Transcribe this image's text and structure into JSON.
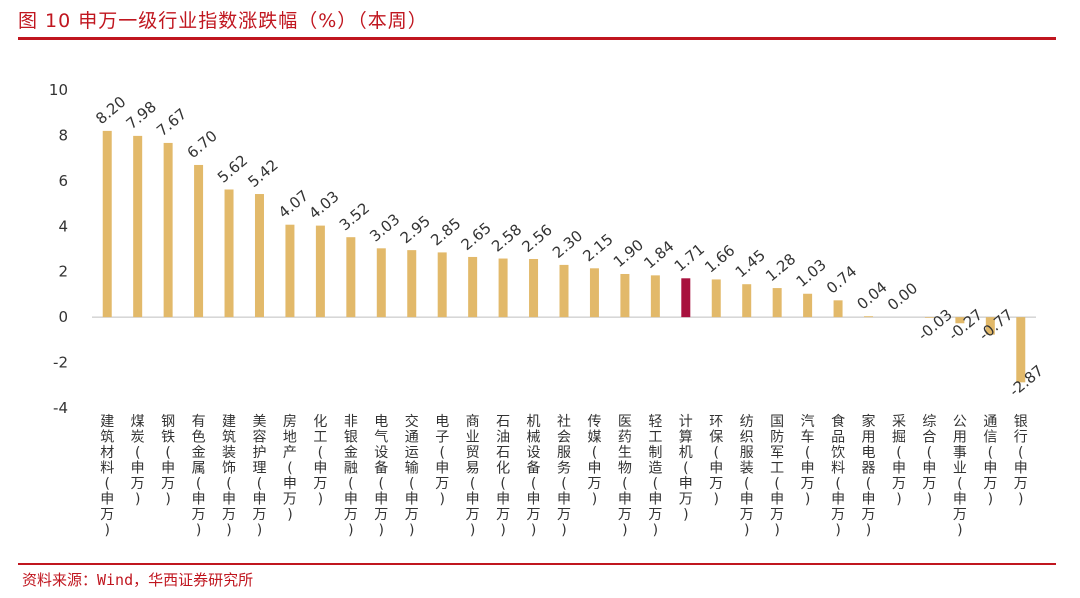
{
  "figure": {
    "title": "图 10   申万一级行业指数涨跌幅（%）（本周）",
    "source": "资料来源：Wind，华西证券研究所"
  },
  "colors": {
    "bar": "#E2B96A",
    "highlight": "#A8123E",
    "rule": "#C0161F",
    "text": "#333333",
    "axis": "#BFBFBF"
  },
  "chart_data": {
    "type": "bar",
    "title": "申万一级行业指数涨跌幅（%）（本周）",
    "ylim": [
      -4,
      10
    ],
    "yticks": [
      10,
      8,
      6,
      4,
      2,
      0,
      -2,
      -4
    ],
    "grid": false,
    "highlight_index": 19,
    "categories": [
      "建筑材料(申万)",
      "煤炭(申万)",
      "钢铁(申万)",
      "有色金属(申万)",
      "建筑装饰(申万)",
      "美容护理(申万)",
      "房地产(申万)",
      "化工(申万)",
      "非银金融(申万)",
      "电气设备(申万)",
      "交通运输(申万)",
      "电子(申万)",
      "商业贸易(申万)",
      "石油石化(申万)",
      "机械设备(申万)",
      "社会服务(申万)",
      "传媒(申万)",
      "医药生物(申万)",
      "轻工制造(申万)",
      "计算机(申万)",
      "环保(申万)",
      "纺织服装(申万)",
      "国防军工(申万)",
      "汽车(申万)",
      "食品饮料(申万)",
      "家用电器(申万)",
      "采掘(申万)",
      "综合(申万)",
      "公用事业(申万)",
      "通信(申万)",
      "银行(申万)"
    ],
    "values": [
      8.2,
      7.98,
      7.67,
      6.7,
      5.62,
      5.42,
      4.07,
      4.03,
      3.52,
      3.03,
      2.95,
      2.85,
      2.65,
      2.58,
      2.56,
      2.3,
      2.15,
      1.9,
      1.84,
      1.71,
      1.66,
      1.45,
      1.28,
      1.03,
      0.74,
      0.04,
      0.0,
      -0.03,
      -0.27,
      -0.77,
      -2.87
    ],
    "labels": [
      "8.20",
      "7.98",
      "7.67",
      "6.70",
      "5.62",
      "5.42",
      "4.07",
      "4.03",
      "3.52",
      "3.03",
      "2.95",
      "2.85",
      "2.65",
      "2.58",
      "2.56",
      "2.30",
      "2.15",
      "1.90",
      "1.84",
      "1.71",
      "1.66",
      "1.45",
      "1.28",
      "1.03",
      "0.74",
      "0.04",
      "0.00",
      "-0.03",
      "-0.27",
      "-0.77",
      "-2.87"
    ]
  }
}
